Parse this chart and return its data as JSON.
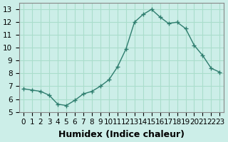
{
  "x": [
    0,
    1,
    2,
    3,
    4,
    5,
    6,
    7,
    8,
    9,
    10,
    11,
    12,
    13,
    14,
    15,
    16,
    17,
    18,
    19,
    20,
    21,
    22,
    23
  ],
  "y": [
    6.8,
    6.7,
    6.6,
    6.3,
    5.6,
    5.5,
    5.9,
    6.4,
    6.6,
    7.0,
    7.5,
    8.5,
    9.9,
    12.0,
    12.6,
    13.0,
    12.4,
    11.9,
    12.0,
    11.5,
    10.2,
    9.4,
    8.4,
    8.1
  ],
  "line_color": "#2e7d6e",
  "marker": "+",
  "marker_size": 4,
  "bg_color": "#cceee8",
  "grid_color": "#aaddcc",
  "xlabel": "Humidex (Indice chaleur)",
  "ylim": [
    5,
    13.5
  ],
  "xlim": [
    -0.5,
    23.5
  ],
  "yticks": [
    5,
    6,
    7,
    8,
    9,
    10,
    11,
    12,
    13
  ],
  "xtick_labels": [
    "0",
    "1",
    "2",
    "3",
    "4",
    "5",
    "6",
    "7",
    "8",
    "9",
    "10",
    "11",
    "12",
    "13",
    "14",
    "15",
    "16",
    "17",
    "18",
    "19",
    "20",
    "21",
    "22",
    "23"
  ],
  "xlabel_fontsize": 9,
  "tick_fontsize": 7.5
}
